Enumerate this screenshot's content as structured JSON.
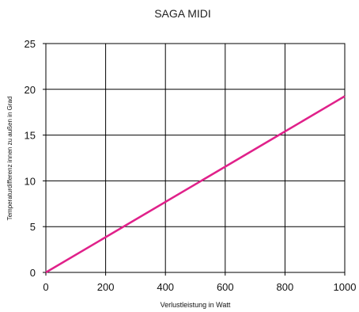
{
  "chart_data": {
    "type": "line",
    "title": "SAGA MIDI",
    "xlabel": "Verlustleistung in Watt",
    "ylabel": "Temperaturdifferenz innen zu außen in Grad",
    "xlim": [
      0,
      1000
    ],
    "ylim": [
      0,
      25
    ],
    "xticks": [
      0,
      200,
      400,
      600,
      800,
      1000
    ],
    "yticks": [
      0,
      5,
      10,
      15,
      20,
      25
    ],
    "grid": true,
    "legend": "none",
    "series": [
      {
        "color": "#e0218a",
        "x": [
          0,
          200,
          400,
          600,
          800,
          1000
        ],
        "y": [
          0,
          3.85,
          7.7,
          11.55,
          15.4,
          19.25
        ]
      }
    ]
  }
}
